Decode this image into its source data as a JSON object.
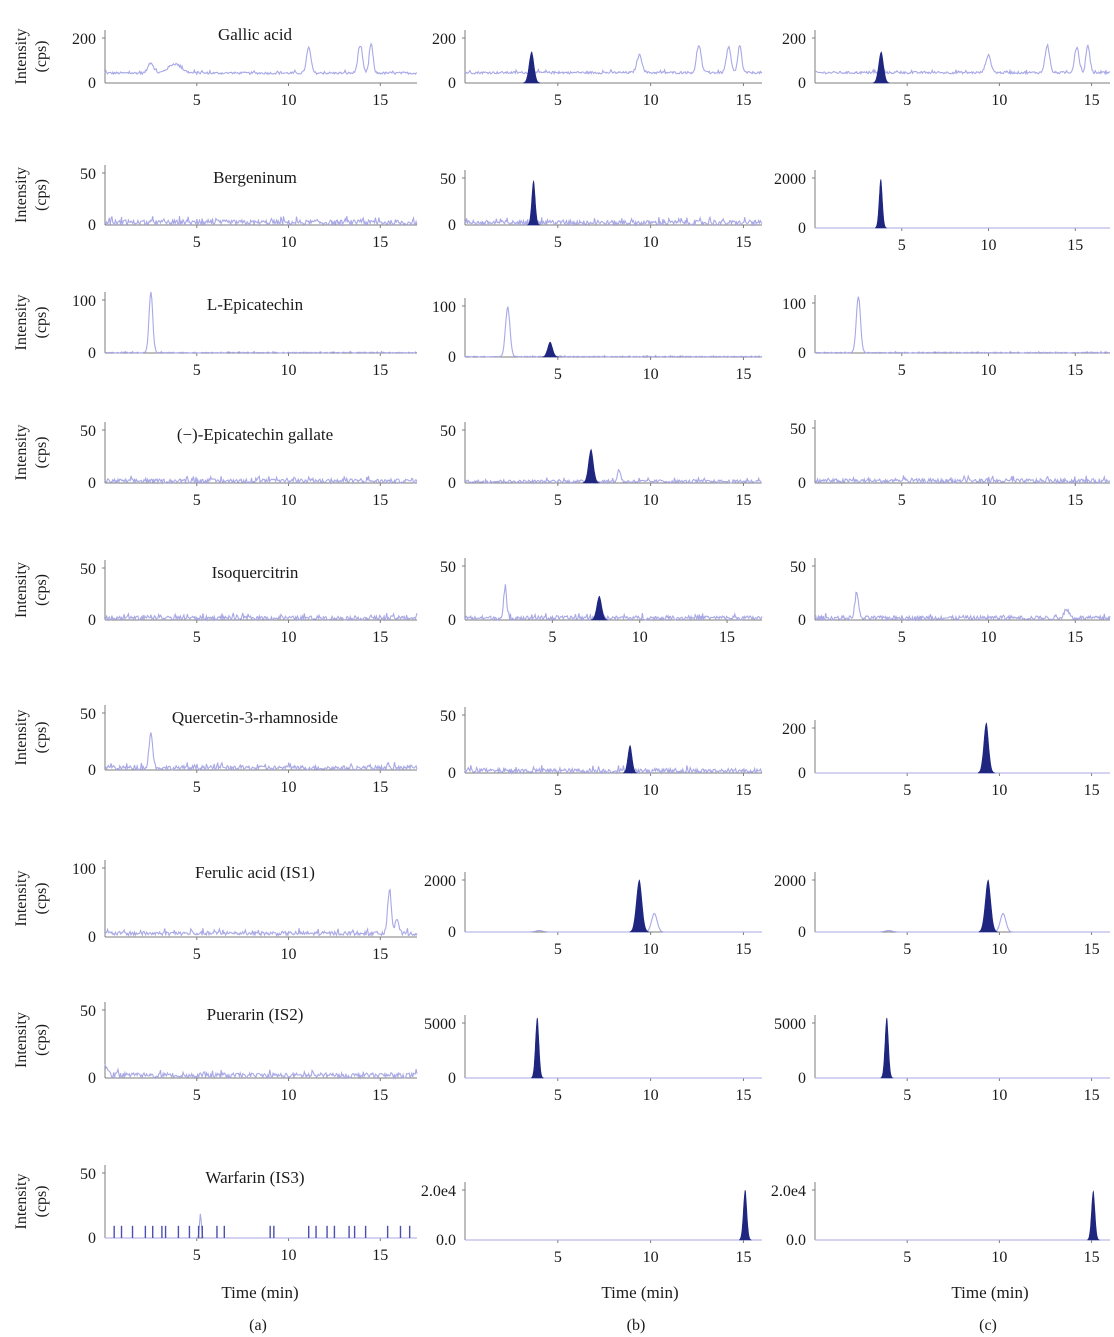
{
  "chart_data": {
    "type": "line",
    "ylabel": [
      "Intensity",
      "(cps)"
    ],
    "xlabel": "Time (min)",
    "panel_labels": [
      "(a)",
      "(b)",
      "(c)"
    ],
    "x_ticks": [
      "5",
      "10",
      "15"
    ],
    "colors": {
      "trace": "#a8a8e6",
      "peak": "#1f2680",
      "axis": "#7c7c7c"
    },
    "rows": [
      {
        "compound": "Gallic acid",
        "panels": [
          {
            "y_ticks": [
              "0",
              "200"
            ],
            "xlim": [
              0,
              17
            ],
            "ymax": 230,
            "baseline": 38,
            "noise": 10,
            "peaks": [
              [
                2.5,
                45,
                0.15,
                0
              ],
              [
                3.8,
                40,
                0.35,
                0
              ],
              [
                11.1,
                110,
                0.12,
                0
              ],
              [
                13.9,
                120,
                0.12,
                0
              ],
              [
                14.5,
                128,
                0.1,
                0
              ]
            ]
          },
          {
            "y_ticks": [
              "0",
              "200"
            ],
            "xlim": [
              0,
              16
            ],
            "ymax": 230,
            "baseline": 40,
            "noise": 10,
            "peaks": [
              [
                3.6,
                135,
                0.14,
                1
              ],
              [
                9.4,
                75,
                0.14,
                0
              ],
              [
                12.6,
                120,
                0.12,
                0
              ],
              [
                14.2,
                110,
                0.12,
                0
              ],
              [
                14.8,
                120,
                0.1,
                0
              ]
            ]
          },
          {
            "y_ticks": [
              "0",
              "200"
            ],
            "xlim": [
              0,
              16
            ],
            "ymax": 230,
            "baseline": 40,
            "noise": 10,
            "peaks": [
              [
                3.6,
                135,
                0.14,
                1
              ],
              [
                9.4,
                75,
                0.14,
                0
              ],
              [
                12.6,
                120,
                0.12,
                0
              ],
              [
                14.2,
                110,
                0.12,
                0
              ],
              [
                14.8,
                120,
                0.1,
                0
              ]
            ]
          }
        ]
      },
      {
        "compound": "Bergeninum",
        "panels": [
          {
            "y_ticks": [
              "0",
              "50"
            ],
            "xlim": [
              0,
              17
            ],
            "ymax": 60,
            "baseline": 0,
            "noise": 5,
            "peaks": []
          },
          {
            "y_ticks": [
              "0",
              "50"
            ],
            "xlim": [
              0,
              16
            ],
            "ymax": 60,
            "baseline": 0,
            "noise": 5,
            "peaks": [
              [
                3.7,
                48,
                0.1,
                1
              ]
            ]
          },
          {
            "y_ticks": [
              "0",
              "2000"
            ],
            "xlim": [
              0,
              17
            ],
            "ymax": 2500,
            "baseline": 0,
            "noise": 0,
            "peaks": [
              [
                3.8,
                2100,
                0.1,
                1
              ]
            ]
          }
        ]
      },
      {
        "compound": "L-Epicatechin",
        "panels": [
          {
            "y_ticks": [
              "0",
              "100"
            ],
            "xlim": [
              0,
              17
            ],
            "ymax": 150,
            "baseline": 0,
            "noise": 2,
            "peaks": [
              [
                2.5,
                150,
                0.1,
                0
              ]
            ]
          },
          {
            "y_ticks": [
              "0",
              "100"
            ],
            "xlim": [
              0,
              16
            ],
            "ymax": 150,
            "baseline": 0,
            "noise": 2,
            "peaks": [
              [
                2.3,
                125,
                0.12,
                0
              ],
              [
                4.6,
                38,
                0.14,
                1
              ]
            ]
          },
          {
            "y_ticks": [
              "0",
              "100"
            ],
            "xlim": [
              0,
              17
            ],
            "ymax": 150,
            "baseline": 0,
            "noise": 2,
            "peaks": [
              [
                2.5,
                145,
                0.12,
                0
              ]
            ]
          }
        ]
      },
      {
        "compound": "(−)-Epicatechin gallate",
        "panels": [
          {
            "y_ticks": [
              "0",
              "50"
            ],
            "xlim": [
              0,
              17
            ],
            "ymax": 60,
            "baseline": 0,
            "noise": 4,
            "peaks": []
          },
          {
            "y_ticks": [
              "0",
              "50"
            ],
            "xlim": [
              0,
              16
            ],
            "ymax": 60,
            "baseline": 0,
            "noise": 3,
            "peaks": [
              [
                6.8,
                33,
                0.14,
                1
              ],
              [
                8.3,
                12,
                0.08,
                0
              ]
            ]
          },
          {
            "y_ticks": [
              "0",
              "50"
            ],
            "xlim": [
              0,
              17
            ],
            "ymax": 60,
            "baseline": 0,
            "noise": 4,
            "peaks": []
          }
        ]
      },
      {
        "compound": "Isoquercitrin",
        "panels": [
          {
            "y_ticks": [
              "0",
              "50"
            ],
            "xlim": [
              0,
              17
            ],
            "ymax": 60,
            "baseline": 0,
            "noise": 4,
            "peaks": []
          },
          {
            "y_ticks": [
              "0",
              "50"
            ],
            "xlim": [
              0,
              17
            ],
            "ymax": 60,
            "baseline": 0,
            "noise": 4,
            "peaks": [
              [
                2.3,
                28,
                0.08,
                0
              ],
              [
                7.7,
                23,
                0.15,
                1
              ]
            ]
          },
          {
            "y_ticks": [
              "0",
              "50"
            ],
            "xlim": [
              0,
              17
            ],
            "ymax": 60,
            "baseline": 0,
            "noise": 4,
            "peaks": [
              [
                2.4,
                25,
                0.1,
                0
              ],
              [
                14.5,
                8,
                0.15,
                0
              ]
            ]
          }
        ]
      },
      {
        "compound": "Quercetin-3-rhamnoside",
        "panels": [
          {
            "y_ticks": [
              "0",
              "50"
            ],
            "xlim": [
              0,
              17
            ],
            "ymax": 60,
            "baseline": 0,
            "noise": 4,
            "peaks": [
              [
                2.5,
                32,
                0.1,
                0
              ]
            ]
          },
          {
            "y_ticks": [
              "0",
              "50"
            ],
            "xlim": [
              0,
              16
            ],
            "ymax": 60,
            "baseline": 0,
            "noise": 4,
            "peaks": [
              [
                8.9,
                25,
                0.12,
                1
              ]
            ]
          },
          {
            "y_ticks": [
              "0",
              "200"
            ],
            "xlim": [
              0,
              16
            ],
            "ymax": 260,
            "baseline": 0,
            "noise": 0,
            "peaks": [
              [
                9.3,
                245,
                0.14,
                1
              ]
            ]
          }
        ]
      },
      {
        "compound": "Ferulic acid (IS1)",
        "panels": [
          {
            "y_ticks": [
              "0",
              "100"
            ],
            "xlim": [
              0,
              17
            ],
            "ymax": 150,
            "baseline": 3,
            "noise": 8,
            "peaks": [
              [
                15.5,
                85,
                0.1,
                0
              ],
              [
                15.9,
                25,
                0.1,
                0
              ]
            ]
          },
          {
            "y_ticks": [
              "0",
              "2000"
            ],
            "xlim": [
              0,
              16
            ],
            "ymax": 2600,
            "baseline": 0,
            "noise": 0,
            "peaks": [
              [
                4.0,
                60,
                0.2,
                0
              ],
              [
                9.4,
                2250,
                0.16,
                1
              ],
              [
                10.2,
                800,
                0.15,
                0
              ]
            ]
          },
          {
            "y_ticks": [
              "0",
              "2000"
            ],
            "xlim": [
              0,
              16
            ],
            "ymax": 2600,
            "baseline": 0,
            "noise": 0,
            "peaks": [
              [
                4.0,
                60,
                0.2,
                0
              ],
              [
                9.4,
                2250,
                0.16,
                1
              ],
              [
                10.2,
                800,
                0.15,
                0
              ]
            ]
          }
        ]
      },
      {
        "compound": "Puerarin (IS2)",
        "panels": [
          {
            "y_ticks": [
              "0",
              "50"
            ],
            "xlim": [
              0,
              17
            ],
            "ymax": 60,
            "baseline": 0,
            "noise": 4,
            "peaks": [
              [
                0.1,
                6,
                0.1,
                0
              ]
            ]
          },
          {
            "y_ticks": [
              "0",
              "5000"
            ],
            "xlim": [
              0,
              16
            ],
            "ymax": 6500,
            "baseline": 0,
            "noise": 0,
            "peaks": [
              [
                3.9,
                6200,
                0.1,
                1
              ]
            ]
          },
          {
            "y_ticks": [
              "0",
              "5000"
            ],
            "xlim": [
              0,
              16
            ],
            "ymax": 6500,
            "baseline": 0,
            "noise": 0,
            "peaks": [
              [
                3.9,
                6200,
                0.1,
                1
              ]
            ]
          }
        ]
      },
      {
        "compound": "Warfarin (IS3)",
        "panels": [
          {
            "y_ticks": [
              "0",
              "50"
            ],
            "xlim": [
              0,
              17
            ],
            "ymax": 60,
            "baseline": 0,
            "noise": 0,
            "spikes": [
              0.5,
              0.9,
              1.5,
              2.2,
              2.6,
              3.1,
              3.3,
              4.0,
              4.6,
              5.1,
              5.3,
              6.1,
              6.5,
              9.0,
              9.2,
              11.1,
              11.5,
              12.1,
              12.5,
              13.3,
              13.6,
              14.2,
              15.4,
              16.1,
              16.6
            ],
            "peaks": [
              [
                5.2,
                20,
                0.05,
                0
              ]
            ]
          },
          {
            "y_ticks": [
              "0.0",
              "2.0e4"
            ],
            "xlim": [
              0,
              16
            ],
            "ymax": 25000,
            "baseline": 0,
            "noise": 0,
            "peaks": [
              [
                15.1,
                21500,
                0.1,
                1
              ]
            ]
          },
          {
            "y_ticks": [
              "0.0",
              "2.0e4"
            ],
            "xlim": [
              0,
              16
            ],
            "ymax": 25000,
            "baseline": 0,
            "noise": 0,
            "peaks": [
              [
                15.1,
                21000,
                0.1,
                1
              ]
            ]
          }
        ]
      }
    ]
  }
}
